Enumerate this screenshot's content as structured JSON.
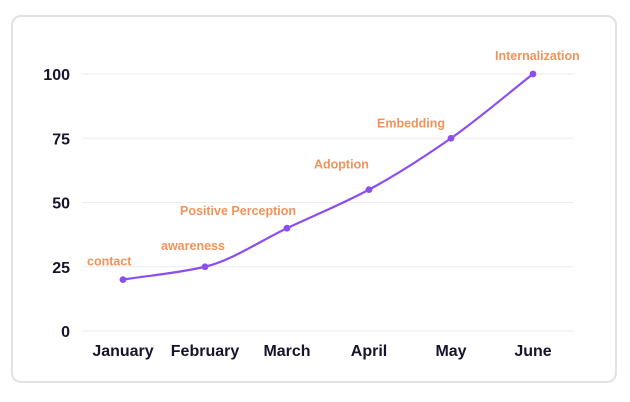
{
  "chart_data": {
    "type": "line",
    "categories": [
      "January",
      "February",
      "March",
      "April",
      "May",
      "June"
    ],
    "series": [
      {
        "values": [
          20,
          25,
          40,
          55,
          75,
          100
        ]
      }
    ],
    "annotations": [
      "contact",
      "awareness",
      "Positive Perception",
      "Adoption",
      "Embedding",
      "Internalization"
    ],
    "yticks": [
      0,
      25,
      50,
      75,
      100
    ],
    "ylim": [
      0,
      100
    ],
    "grid": true,
    "legend": "none",
    "title": "",
    "xlabel": "",
    "ylabel": "",
    "colors": {
      "line": "#8b4ff0",
      "annotation": "#f2935a",
      "tick_text": "#16152b",
      "grid": "#eeeeee",
      "border": "#e2e2e2"
    }
  }
}
